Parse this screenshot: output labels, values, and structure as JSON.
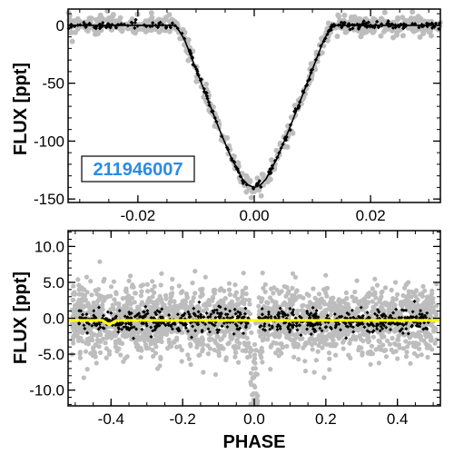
{
  "colors": {
    "raw": "#bdbdbd",
    "binned": "#000000",
    "model": "#000000",
    "secondary_model": "#ffff00",
    "target_label": "#2b8ce6"
  },
  "chart_data": [
    {
      "type": "scatter",
      "panel": "top",
      "ylabel": "FLUX [ppt]",
      "xlabel": "",
      "annotation": "211946007",
      "xlim": [
        -0.032,
        0.032
      ],
      "ylim": [
        -153,
        14
      ],
      "x_ticks": [
        -0.02,
        0.0,
        0.02
      ],
      "x_tick_labels": [
        "-0.02",
        "0.00",
        "0.02"
      ],
      "y_ticks": [
        0,
        -50,
        -100,
        -150
      ],
      "y_tick_labels": [
        "0",
        "-50",
        "-100",
        "-150"
      ],
      "grid": false,
      "series": [
        {
          "role": "transit-model",
          "x": [
            -0.032,
            -0.0135,
            -0.012,
            -0.01,
            -0.008,
            -0.006,
            -0.004,
            -0.002,
            -0.001,
            0.0,
            0.001,
            0.002,
            0.004,
            0.006,
            0.008,
            0.01,
            0.012,
            0.0135,
            0.032
          ],
          "values": [
            0,
            0,
            -12,
            -38,
            -64,
            -90,
            -114,
            -133,
            -138,
            -140,
            -138,
            -133,
            -114,
            -90,
            -64,
            -38,
            -12,
            0,
            0
          ]
        }
      ]
    },
    {
      "type": "scatter",
      "panel": "bottom",
      "ylabel": "FLUX [ppt]",
      "xlabel": "PHASE",
      "xlim": [
        -0.52,
        0.52
      ],
      "ylim": [
        -12.2,
        12.2
      ],
      "x_ticks": [
        -0.4,
        -0.2,
        0.0,
        0.2,
        0.4
      ],
      "x_tick_labels": [
        "-0.4",
        "-0.2",
        "0.0",
        "0.2",
        "0.4"
      ],
      "y_ticks": [
        10,
        5,
        0,
        -5,
        -10
      ],
      "y_tick_labels": [
        "10.0",
        "5.0",
        "0.0",
        "-5.0",
        "-10.0"
      ],
      "grid": false,
      "series": [
        {
          "role": "secondary-eclipse-model",
          "x": [
            -0.52,
            -0.425,
            -0.415,
            -0.405,
            -0.395,
            -0.385,
            0.52
          ],
          "values": [
            -0.3,
            -0.3,
            -0.6,
            -0.9,
            -0.6,
            -0.3,
            -0.3
          ]
        }
      ]
    }
  ]
}
